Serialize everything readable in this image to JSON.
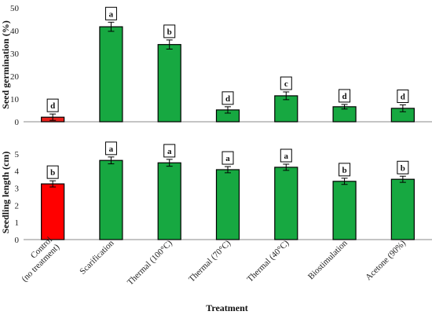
{
  "chart_data": [
    {
      "type": "bar",
      "ylabel": "Seed germination (%)",
      "ylim": [
        0,
        50
      ],
      "yticks": [
        0,
        10,
        20,
        30,
        40,
        50
      ],
      "categories": [
        "Control\n(no treatment)",
        "Scarification",
        "Thermal  (100°C)",
        "Thermal  (70°C)",
        "Thermal  (40°C)",
        "Biostimulation",
        "Acetone (90%)"
      ],
      "values": [
        2.0,
        41.7,
        33.9,
        5.2,
        11.4,
        6.6,
        5.9
      ],
      "errors": [
        1.4,
        2.0,
        2.0,
        1.4,
        1.7,
        1.0,
        1.5
      ],
      "letters": [
        "d",
        "a",
        "b",
        "d",
        "c",
        "d",
        "d"
      ],
      "colors": [
        "#e8211c",
        "#17a841",
        "#17a841",
        "#17a841",
        "#17a841",
        "#17a841",
        "#17a841"
      ],
      "grid": false
    },
    {
      "type": "bar",
      "xlabel": "Treatment",
      "ylabel": "Seedling length (cm)",
      "ylim": [
        0,
        5.5
      ],
      "yticks": [
        0,
        1,
        2,
        3,
        4,
        5
      ],
      "categories": [
        "Control\n(no treatment)",
        "Scarification",
        "Thermal  (100°C)",
        "Thermal  (70°C)",
        "Thermal  (40°C)",
        "Biostimulation",
        "Acetone (90%)"
      ],
      "values": [
        3.25,
        4.62,
        4.48,
        4.08,
        4.22,
        3.4,
        3.52
      ],
      "errors": [
        0.18,
        0.2,
        0.2,
        0.18,
        0.18,
        0.18,
        0.18
      ],
      "letters": [
        "b",
        "a",
        "a",
        "a",
        "a",
        "b",
        "b"
      ],
      "colors": [
        "#ff0000",
        "#17a841",
        "#17a841",
        "#17a841",
        "#17a841",
        "#17a841",
        "#17a841"
      ],
      "grid": false
    }
  ]
}
